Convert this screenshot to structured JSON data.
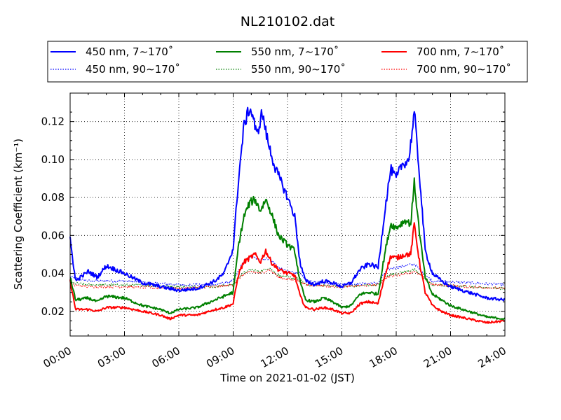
{
  "chart_data": {
    "type": "line",
    "title": "NL210102.dat",
    "xlabel": "Time on 2021-01-02 (JST)",
    "ylabel": "Scattering Coefficient (km⁻¹)",
    "xlim": [
      0,
      24
    ],
    "ylim": [
      0.007,
      0.135
    ],
    "x_ticks": [
      0,
      3,
      6,
      9,
      12,
      15,
      18,
      21,
      24
    ],
    "x_tick_labels": [
      "00:00",
      "03:00",
      "06:00",
      "09:00",
      "12:00",
      "15:00",
      "18:00",
      "21:00",
      "24:00"
    ],
    "y_ticks": [
      0.02,
      0.04,
      0.06,
      0.08,
      0.1,
      0.12
    ],
    "y_tick_labels": [
      "0.02",
      "0.04",
      "0.06",
      "0.08",
      "0.10",
      "0.12"
    ],
    "grid": true,
    "legend_position": "top-outside",
    "series": [
      {
        "name": "450 nm, 7∼170˚",
        "color": "#0000ff",
        "style": "solid",
        "x": [
          0,
          0.3,
          1,
          1.5,
          2,
          3,
          4,
          5,
          6,
          7,
          8,
          8.5,
          9,
          9.3,
          9.6,
          9.9,
          10.1,
          10.3,
          10.6,
          10.9,
          11.3,
          11.7,
          12,
          12.4,
          12.7,
          13,
          13.5,
          14,
          14.5,
          15,
          15.5,
          16,
          16.5,
          17,
          17.4,
          17.7,
          18,
          18.3,
          18.7,
          19,
          19.3,
          19.6,
          20,
          20.5,
          21,
          22,
          23,
          24
        ],
        "y": [
          0.058,
          0.036,
          0.041,
          0.038,
          0.044,
          0.04,
          0.035,
          0.033,
          0.031,
          0.032,
          0.036,
          0.04,
          0.053,
          0.09,
          0.118,
          0.127,
          0.123,
          0.112,
          0.125,
          0.11,
          0.096,
          0.087,
          0.08,
          0.07,
          0.045,
          0.036,
          0.034,
          0.036,
          0.035,
          0.033,
          0.035,
          0.042,
          0.045,
          0.043,
          0.075,
          0.095,
          0.09,
          0.097,
          0.1,
          0.125,
          0.09,
          0.052,
          0.04,
          0.036,
          0.033,
          0.03,
          0.027,
          0.026
        ]
      },
      {
        "name": "450 nm, 90∼170˚",
        "color": "#0000ff",
        "style": "dotted",
        "x": [
          0,
          1,
          3,
          6,
          8,
          9,
          9.5,
          10,
          10.5,
          11,
          11.5,
          12,
          12.7,
          13,
          15,
          17,
          17.5,
          18,
          18.5,
          19,
          19.5,
          20,
          24
        ],
        "y": [
          0.038,
          0.036,
          0.036,
          0.034,
          0.034,
          0.036,
          0.045,
          0.049,
          0.047,
          0.048,
          0.043,
          0.041,
          0.04,
          0.036,
          0.034,
          0.035,
          0.042,
          0.043,
          0.044,
          0.045,
          0.04,
          0.036,
          0.034
        ]
      },
      {
        "name": "550 nm, 7∼170˚",
        "color": "#008000",
        "style": "solid",
        "x": [
          0,
          0.3,
          1,
          1.5,
          2,
          3,
          4,
          5,
          5.5,
          6,
          7,
          8,
          8.5,
          9,
          9.3,
          9.6,
          9.9,
          10.2,
          10.5,
          10.8,
          11.1,
          11.5,
          12,
          12.4,
          12.7,
          13,
          13.5,
          14,
          14.5,
          15,
          15.5,
          16,
          16.5,
          17,
          17.4,
          17.7,
          18,
          18.5,
          18.8,
          19,
          19.3,
          19.6,
          20,
          20.5,
          21,
          22,
          23,
          24
        ],
        "y": [
          0.038,
          0.026,
          0.027,
          0.025,
          0.028,
          0.027,
          0.023,
          0.021,
          0.019,
          0.021,
          0.022,
          0.026,
          0.028,
          0.03,
          0.055,
          0.07,
          0.077,
          0.079,
          0.073,
          0.079,
          0.072,
          0.06,
          0.055,
          0.052,
          0.035,
          0.026,
          0.025,
          0.027,
          0.025,
          0.022,
          0.023,
          0.029,
          0.03,
          0.029,
          0.052,
          0.066,
          0.064,
          0.068,
          0.066,
          0.088,
          0.06,
          0.038,
          0.029,
          0.026,
          0.023,
          0.02,
          0.017,
          0.016
        ]
      },
      {
        "name": "550 nm, 90∼170˚",
        "color": "#008000",
        "style": "dotted",
        "x": [
          0,
          1,
          3,
          6,
          8,
          9,
          9.5,
          10,
          10.5,
          11,
          11.5,
          12,
          12.7,
          13,
          15,
          17,
          17.5,
          18,
          18.5,
          19,
          19.5,
          20,
          24
        ],
        "y": [
          0.035,
          0.034,
          0.034,
          0.033,
          0.033,
          0.034,
          0.04,
          0.042,
          0.041,
          0.043,
          0.039,
          0.038,
          0.037,
          0.034,
          0.033,
          0.034,
          0.039,
          0.04,
          0.041,
          0.042,
          0.038,
          0.034,
          0.032
        ]
      },
      {
        "name": "700 nm, 7∼170˚",
        "color": "#ff0000",
        "style": "solid",
        "x": [
          0,
          0.3,
          1,
          1.5,
          2,
          3,
          4,
          5,
          5.5,
          6,
          7,
          8,
          8.5,
          9,
          9.3,
          9.6,
          9.9,
          10.2,
          10.5,
          10.8,
          11.1,
          11.5,
          12,
          12.4,
          12.7,
          13,
          13.5,
          14,
          14.5,
          15,
          15.5,
          16,
          16.5,
          17,
          17.4,
          17.7,
          18,
          18.5,
          18.8,
          19,
          19.3,
          19.6,
          20,
          20.5,
          21,
          22,
          23,
          24
        ],
        "y": [
          0.036,
          0.021,
          0.021,
          0.02,
          0.022,
          0.022,
          0.02,
          0.018,
          0.016,
          0.018,
          0.018,
          0.021,
          0.022,
          0.024,
          0.04,
          0.046,
          0.048,
          0.05,
          0.046,
          0.052,
          0.046,
          0.042,
          0.04,
          0.039,
          0.028,
          0.022,
          0.021,
          0.022,
          0.021,
          0.019,
          0.019,
          0.024,
          0.025,
          0.024,
          0.04,
          0.049,
          0.048,
          0.05,
          0.05,
          0.066,
          0.045,
          0.03,
          0.023,
          0.02,
          0.018,
          0.016,
          0.014,
          0.015
        ]
      },
      {
        "name": "700 nm, 90∼170˚",
        "color": "#ff0000",
        "style": "dotted",
        "x": [
          0,
          1,
          3,
          6,
          8,
          9,
          9.5,
          10,
          10.5,
          11,
          11.5,
          12,
          12.7,
          13,
          15,
          17,
          17.5,
          18,
          18.5,
          19,
          19.5,
          20,
          24
        ],
        "y": [
          0.034,
          0.033,
          0.033,
          0.032,
          0.033,
          0.034,
          0.039,
          0.041,
          0.04,
          0.042,
          0.038,
          0.037,
          0.036,
          0.034,
          0.033,
          0.034,
          0.038,
          0.039,
          0.04,
          0.041,
          0.038,
          0.034,
          0.032
        ]
      }
    ]
  }
}
